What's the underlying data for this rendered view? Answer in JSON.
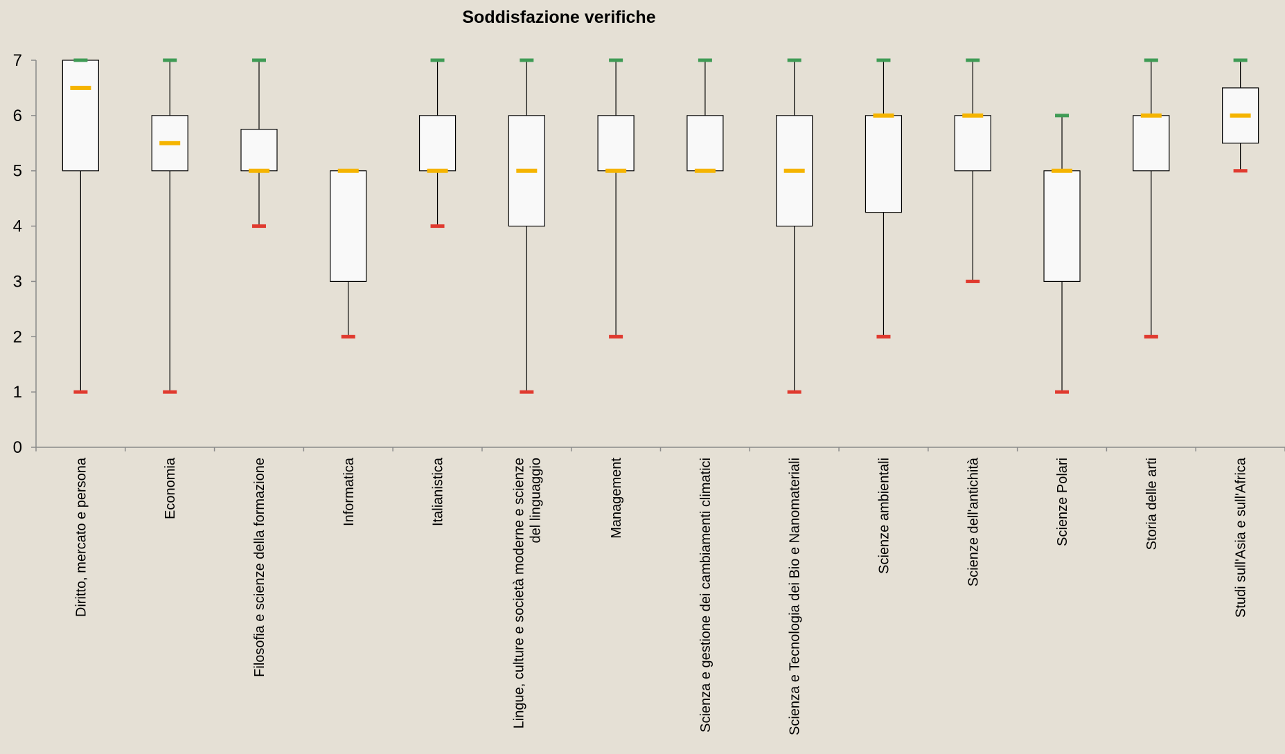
{
  "chart_data": {
    "type": "box",
    "title": "Soddisfazione verifiche",
    "ylim": [
      0,
      7
    ],
    "yticks": [
      "0",
      "1",
      "2",
      "3",
      "4",
      "5",
      "6",
      "7"
    ],
    "categories": [
      [
        "Diritto, mercato e persona"
      ],
      [
        "Economia"
      ],
      [
        "Filosofia e scienze della formazione"
      ],
      [
        "Informatica"
      ],
      [
        "Italianistica"
      ],
      [
        "Lingue, culture e società moderne e scienze",
        "del linguaggio"
      ],
      [
        "Management"
      ],
      [
        "Scienza e gestione dei cambiamenti climatici"
      ],
      [
        "Scienza e Tecnologia dei Bio e Nanomateriali"
      ],
      [
        "Scienze ambientali"
      ],
      [
        "Scienze dell'antichità"
      ],
      [
        "Scienze Polari"
      ],
      [
        "Storia delle arti"
      ],
      [
        "Studi sull'Asia e sull'Africa"
      ]
    ],
    "boxes": [
      {
        "min": 1,
        "q1": 5,
        "median": 6.5,
        "q3": 7,
        "max": 7
      },
      {
        "min": 1,
        "q1": 5,
        "median": 5.5,
        "q3": 6,
        "max": 7
      },
      {
        "min": 4,
        "q1": 5,
        "median": 5,
        "q3": 5.75,
        "max": 7
      },
      {
        "min": 2,
        "q1": 3,
        "median": 5,
        "q3": 5,
        "max": 5
      },
      {
        "min": 4,
        "q1": 5,
        "median": 5,
        "q3": 6,
        "max": 7
      },
      {
        "min": 1,
        "q1": 4,
        "median": 5,
        "q3": 6,
        "max": 7
      },
      {
        "min": 2,
        "q1": 5,
        "median": 5,
        "q3": 6,
        "max": 7
      },
      {
        "min": 5,
        "q1": 5,
        "median": 5,
        "q3": 6,
        "max": 7
      },
      {
        "min": 1,
        "q1": 4,
        "median": 5,
        "q3": 6,
        "max": 7
      },
      {
        "min": 2,
        "q1": 4.25,
        "median": 6,
        "q3": 6,
        "max": 7
      },
      {
        "min": 3,
        "q1": 5,
        "median": 6,
        "q3": 6,
        "max": 7
      },
      {
        "min": 1,
        "q1": 3,
        "median": 5,
        "q3": 5,
        "max": 6
      },
      {
        "min": 2,
        "q1": 5,
        "median": 6,
        "q3": 6,
        "max": 7
      },
      {
        "min": 5,
        "q1": 5.5,
        "median": 6,
        "q3": 6.5,
        "max": 7
      }
    ],
    "grid": false,
    "colors": {
      "background": "#e5e0d5",
      "box_fill": "#f9f9f9",
      "box_stroke": "#000000",
      "median": "#f5b400",
      "max_marker": "#3f9b55",
      "min_marker": "#e03a2f",
      "axis": "#8a8a8a"
    }
  }
}
